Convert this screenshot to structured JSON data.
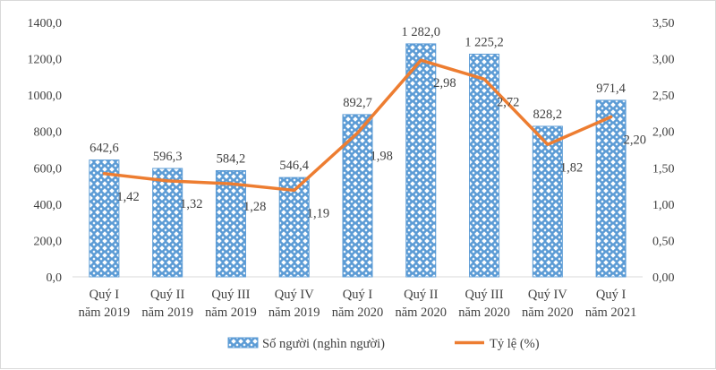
{
  "chart_data": {
    "type": "bar+line",
    "categories": [
      [
        "Quý I",
        "năm 2019"
      ],
      [
        "Quý II",
        "năm 2019"
      ],
      [
        "Quý III",
        "năm 2019"
      ],
      [
        "Quý IV",
        "năm 2019"
      ],
      [
        "Quý I",
        "năm 2020"
      ],
      [
        "Quý II",
        "năm 2020"
      ],
      [
        "Quý III",
        "năm 2020"
      ],
      [
        "Quý IV",
        "năm 2020"
      ],
      [
        "Quý I",
        "năm 2021"
      ]
    ],
    "series": [
      {
        "name": "Số người (nghìn người)",
        "type": "bar",
        "axis": "left",
        "color": "#5b9bd5",
        "pattern": "diamond-dots",
        "values": [
          642.6,
          596.3,
          584.2,
          546.4,
          892.7,
          1282.0,
          1225.2,
          828.2,
          971.4
        ],
        "labels": [
          "642,6",
          "596,3",
          "584,2",
          "546,4",
          "892,7",
          "1 282,0",
          "1 225,2",
          "828,2",
          "971,4"
        ]
      },
      {
        "name": "Tỷ lệ (%)",
        "type": "line",
        "axis": "right",
        "color": "#ed7d31",
        "values": [
          1.42,
          1.32,
          1.28,
          1.19,
          1.98,
          2.98,
          2.72,
          1.82,
          2.2
        ],
        "labels": [
          "1,42",
          "1,32",
          "1,28",
          "1,19",
          "1,98",
          "2,98",
          "2,72",
          "1,82",
          "2,20"
        ]
      }
    ],
    "y_left": {
      "range": [
        0,
        1400
      ],
      "ticks": [
        "0,0",
        "200,0",
        "400,0",
        "600,0",
        "800,0",
        "1000,0",
        "1200,0",
        "1400,0"
      ]
    },
    "y_right": {
      "range": [
        0,
        3.5
      ],
      "ticks": [
        "0,00",
        "0,50",
        "1,00",
        "1,50",
        "2,00",
        "2,50",
        "3,00",
        "3,50"
      ]
    },
    "grid": false,
    "legend": "bottom-center"
  }
}
